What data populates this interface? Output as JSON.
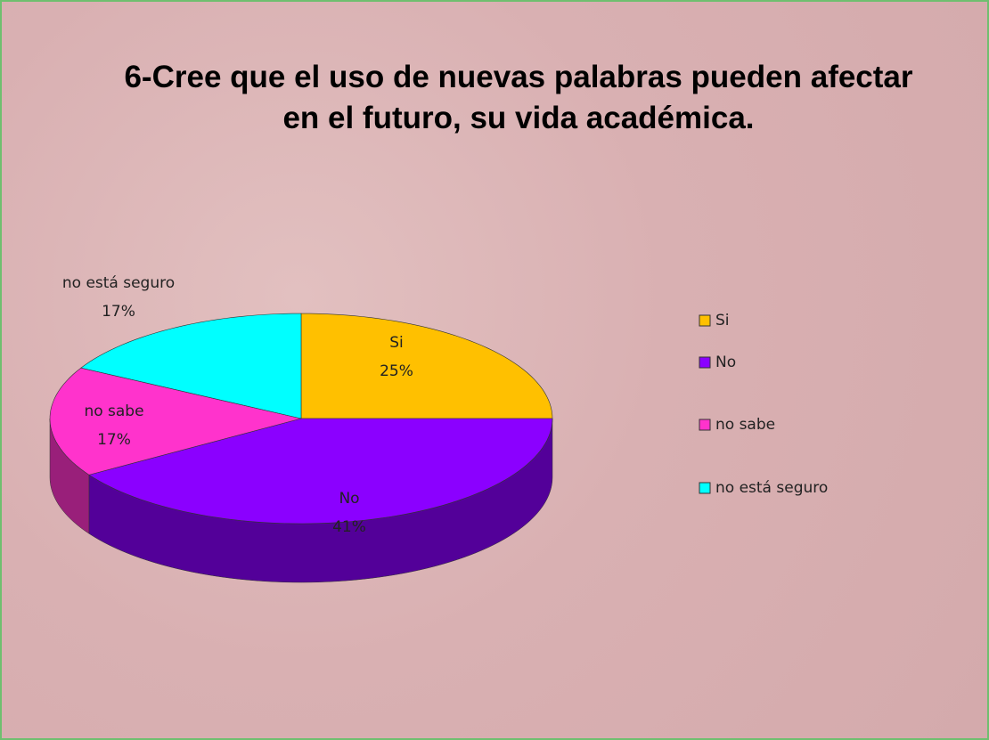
{
  "chart_data": {
    "type": "pie",
    "title": "6-Cree que el uso de nuevas palabras pueden afectar en el futuro, su vida académica.",
    "categories": [
      "Si",
      "No",
      "no sabe",
      "no está seguro"
    ],
    "values": [
      25,
      41,
      17,
      17
    ],
    "value_labels": [
      "25%",
      "41%",
      "17%",
      "17%"
    ],
    "colors": [
      "#ffc000",
      "#8b00ff",
      "#ff33cc",
      "#00ffff"
    ],
    "legend": "right"
  }
}
